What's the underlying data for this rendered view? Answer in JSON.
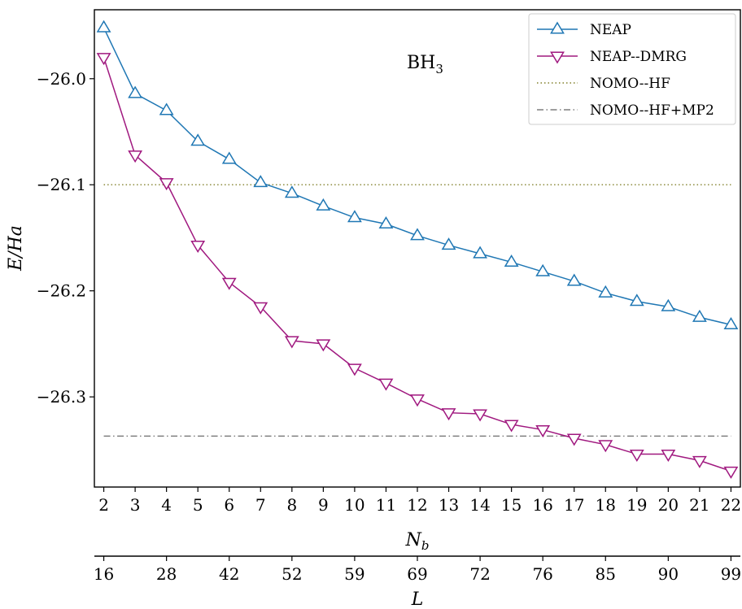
{
  "chart_data": {
    "type": "line",
    "title": "",
    "annotation": {
      "base": "BH",
      "sub": "3"
    },
    "x": [
      2,
      3,
      4,
      5,
      6,
      7,
      8,
      9,
      10,
      11,
      12,
      13,
      14,
      15,
      16,
      17,
      18,
      19,
      20,
      21,
      22
    ],
    "secondary_x_labels": [
      "16",
      "28",
      "42",
      "52",
      "59",
      "69",
      "72",
      "76",
      "85",
      "90",
      "99"
    ],
    "xlabel": {
      "base": "N",
      "sub": "b"
    },
    "xlabel2": "L",
    "ylabel": "E/Ha",
    "ylim": [
      -26.385,
      -25.935
    ],
    "xlim": [
      1.7,
      22.3
    ],
    "yticks": [
      -26.0,
      -26.1,
      -26.2,
      -26.3
    ],
    "ytick_labels": [
      "−26.0",
      "−26.1",
      "−26.2",
      "−26.3"
    ],
    "grid": false,
    "legend_position": "top-right",
    "series": [
      {
        "name": "NEAP",
        "color": "#1f77b4",
        "marker": "triangle-up",
        "style": "solid",
        "values": [
          -25.952,
          -26.014,
          -26.03,
          -26.059,
          -26.076,
          -26.098,
          -26.108,
          -26.12,
          -26.131,
          -26.137,
          -26.148,
          -26.157,
          -26.165,
          -26.173,
          -26.182,
          -26.191,
          -26.202,
          -26.21,
          -26.215,
          -26.225,
          -26.232
        ]
      },
      {
        "name": "NEAP--DMRG",
        "color": "#a0187f",
        "marker": "triangle-down",
        "style": "solid",
        "values": [
          -25.98,
          -26.072,
          -26.098,
          -26.157,
          -26.192,
          -26.215,
          -26.247,
          -26.25,
          -26.273,
          -26.287,
          -26.302,
          -26.315,
          -26.316,
          -26.326,
          -26.331,
          -26.339,
          -26.345,
          -26.354,
          -26.354,
          -26.36,
          -26.37
        ]
      },
      {
        "name": "NOMO--HF",
        "color": "#807f28",
        "marker": "none",
        "style": "dotted",
        "constant": -26.1
      },
      {
        "name": "NOMO--HF+MP2",
        "color": "#7f7f7f",
        "marker": "none",
        "style": "dashdot",
        "constant": -26.337
      }
    ]
  }
}
